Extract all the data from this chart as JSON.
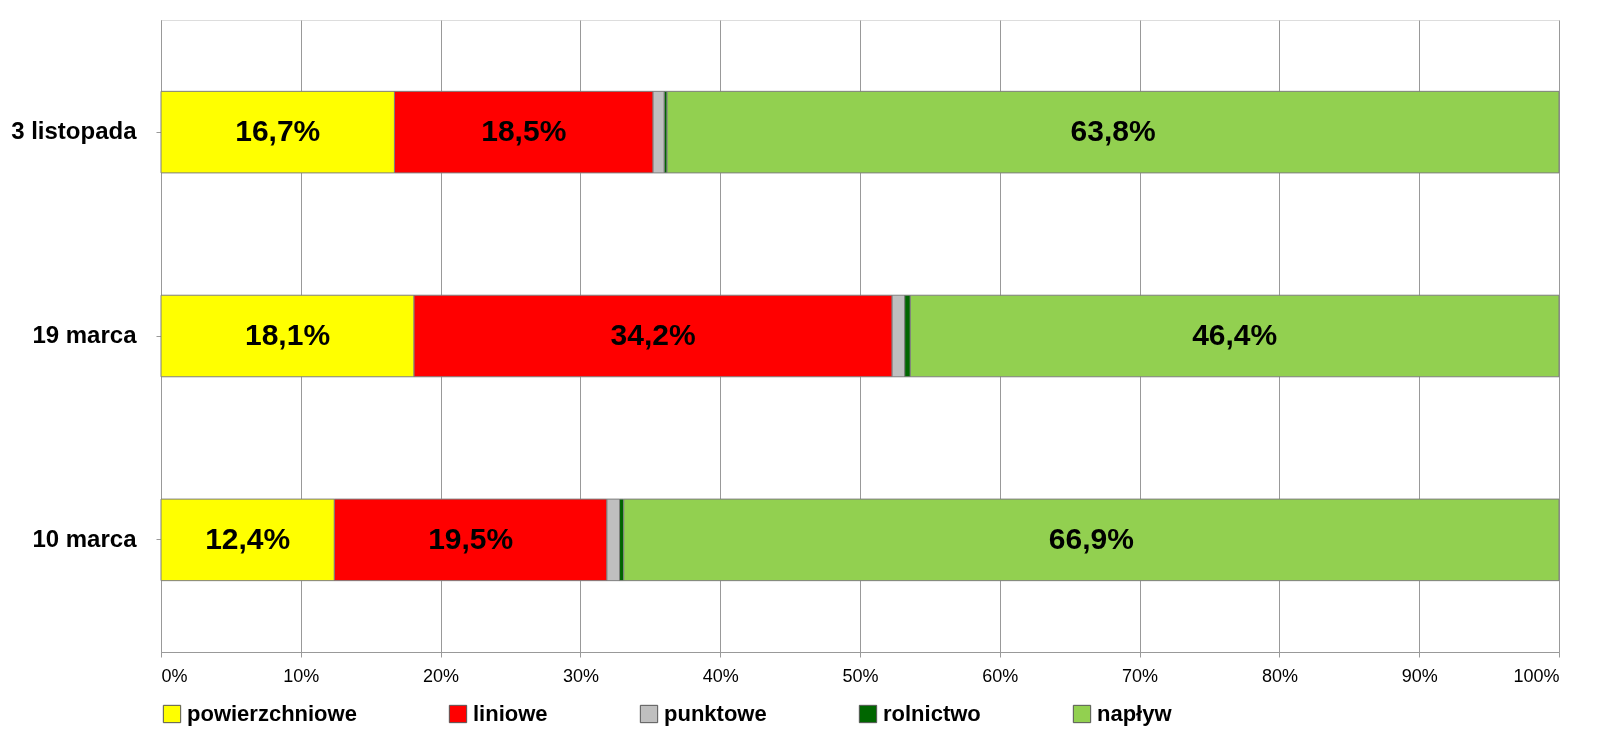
{
  "chart_data": {
    "type": "bar",
    "orientation": "horizontal",
    "stacked": true,
    "categories": [
      "3 listopada",
      "19 marca",
      "10 marca"
    ],
    "series": [
      {
        "name": "powierzchniowe",
        "color": "#ffff00",
        "values": [
          16.7,
          18.1,
          12.4
        ],
        "value_labels": [
          "16,7%",
          "18,1%",
          "12,4%"
        ]
      },
      {
        "name": "liniowe",
        "color": "#ff0000",
        "values": [
          18.5,
          34.2,
          19.5
        ],
        "value_labels": [
          "18,5%",
          "34,2%",
          "19,5%"
        ]
      },
      {
        "name": "punktowe",
        "color": "#bfbfbf",
        "values": [
          0.8,
          0.9,
          0.9
        ],
        "value_labels": [
          null,
          null,
          null
        ]
      },
      {
        "name": "rolnictwo",
        "color": "#006600",
        "values": [
          0.2,
          0.4,
          0.3
        ],
        "value_labels": [
          null,
          null,
          null
        ]
      },
      {
        "name": "napływ",
        "color": "#92d050",
        "values": [
          63.8,
          46.4,
          66.9
        ],
        "value_labels": [
          "63,8%",
          "46,4%",
          "66,9%"
        ]
      }
    ],
    "xlim": [
      0,
      100
    ],
    "xticks": [
      {
        "value": 0,
        "label": "0%"
      },
      {
        "value": 10,
        "label": "10%"
      },
      {
        "value": 20,
        "label": "20%"
      },
      {
        "value": 30,
        "label": "30%"
      },
      {
        "value": 40,
        "label": "40%"
      },
      {
        "value": 50,
        "label": "50%"
      },
      {
        "value": 60,
        "label": "60%"
      },
      {
        "value": 70,
        "label": "70%"
      },
      {
        "value": 80,
        "label": "80%"
      },
      {
        "value": 90,
        "label": "90%"
      },
      {
        "value": 100,
        "label": "100%"
      }
    ],
    "grid": "x",
    "legend": "bottom"
  }
}
